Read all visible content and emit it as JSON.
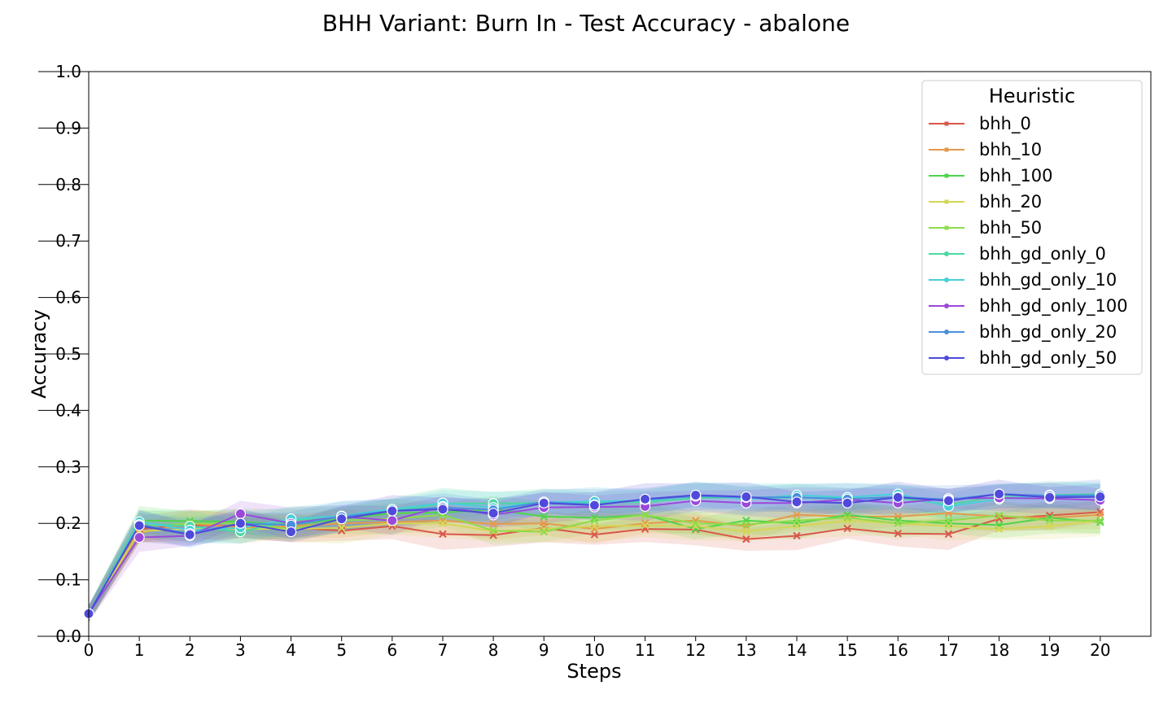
{
  "chart_data": {
    "type": "line",
    "title": "BHH Variant: Burn In - Test Accuracy - abalone",
    "xlabel": "Steps",
    "ylabel": "Accuracy",
    "xlim": [
      0,
      21
    ],
    "ylim": [
      0,
      1
    ],
    "x_ticks": [
      "0",
      "1",
      "2",
      "3",
      "4",
      "5",
      "6",
      "7",
      "8",
      "9",
      "10",
      "11",
      "12",
      "13",
      "14",
      "15",
      "16",
      "17",
      "18",
      "19",
      "20"
    ],
    "y_ticks": [
      "0.0",
      "0.1",
      "0.2",
      "0.3",
      "0.4",
      "0.5",
      "0.6",
      "0.7",
      "0.8",
      "0.9",
      "1.0"
    ],
    "legend": {
      "title": "Heuristic",
      "placement": "top-right"
    },
    "grid": false,
    "x": [
      0,
      1,
      2,
      3,
      4,
      5,
      6,
      7,
      8,
      9,
      10,
      11,
      12,
      13,
      14,
      15,
      16,
      17,
      18,
      19,
      20
    ],
    "series": [
      {
        "name": "bhh_0",
        "color": "#d9584a",
        "marker": "x",
        "values": [
          0.04,
          0.19,
          0.197,
          0.195,
          0.192,
          0.187,
          0.195,
          0.181,
          0.179,
          0.192,
          0.18,
          0.19,
          0.189,
          0.172,
          0.178,
          0.191,
          0.182,
          0.181,
          0.208,
          0.214,
          0.22
        ]
      },
      {
        "name": "bhh_10",
        "color": "#e59a4c",
        "marker": "x",
        "values": [
          0.04,
          0.183,
          0.2,
          0.192,
          0.195,
          0.2,
          0.202,
          0.205,
          0.199,
          0.2,
          0.19,
          0.2,
          0.205,
          0.195,
          0.215,
          0.212,
          0.212,
          0.218,
          0.212,
          0.21,
          0.215
        ]
      },
      {
        "name": "bhh_100",
        "color": "#4fd44c",
        "marker": "x",
        "values": [
          0.04,
          0.205,
          0.204,
          0.203,
          0.197,
          0.208,
          0.218,
          0.219,
          0.225,
          0.212,
          0.21,
          0.215,
          0.19,
          0.205,
          0.2,
          0.215,
          0.205,
          0.2,
          0.197,
          0.21,
          0.202
        ]
      },
      {
        "name": "bhh_20",
        "color": "#d5d655",
        "marker": "x",
        "values": [
          0.04,
          0.186,
          0.19,
          0.19,
          0.19,
          0.192,
          0.2,
          0.2,
          0.186,
          0.19,
          0.195,
          0.196,
          0.195,
          0.186,
          0.195,
          0.205,
          0.2,
          0.195,
          0.19,
          0.195,
          0.205
        ]
      },
      {
        "name": "bhh_50",
        "color": "#8fdc4a",
        "marker": "x",
        "values": [
          0.04,
          0.195,
          0.2,
          0.2,
          0.19,
          0.205,
          0.208,
          0.215,
          0.187,
          0.185,
          0.205,
          0.215,
          0.2,
          0.198,
          0.205,
          0.21,
          0.2,
          0.205,
          0.214,
          0.205,
          0.205
        ]
      },
      {
        "name": "bhh_gd_only_0",
        "color": "#4ad8a0",
        "marker": "o",
        "values": [
          0.04,
          0.2,
          0.195,
          0.185,
          0.205,
          0.213,
          0.222,
          0.235,
          0.235,
          0.236,
          0.237,
          0.238,
          0.245,
          0.246,
          0.245,
          0.244,
          0.245,
          0.233,
          0.248,
          0.25,
          0.252
        ]
      },
      {
        "name": "bhh_gd_only_10",
        "color": "#48cfd9",
        "marker": "o",
        "values": [
          0.04,
          0.203,
          0.188,
          0.192,
          0.208,
          0.213,
          0.225,
          0.236,
          0.228,
          0.237,
          0.239,
          0.24,
          0.25,
          0.243,
          0.25,
          0.246,
          0.252,
          0.23,
          0.243,
          0.25,
          0.248
        ]
      },
      {
        "name": "bhh_gd_only_100",
        "color": "#9b48db",
        "marker": "o",
        "values": [
          0.04,
          0.175,
          0.178,
          0.217,
          0.2,
          0.212,
          0.205,
          0.23,
          0.215,
          0.228,
          0.229,
          0.23,
          0.24,
          0.236,
          0.236,
          0.242,
          0.236,
          0.244,
          0.245,
          0.244,
          0.241
        ]
      },
      {
        "name": "bhh_gd_only_20",
        "color": "#4a8fdc",
        "marker": "o",
        "values": [
          0.04,
          0.198,
          0.182,
          0.2,
          0.197,
          0.212,
          0.222,
          0.228,
          0.224,
          0.238,
          0.233,
          0.242,
          0.248,
          0.246,
          0.246,
          0.243,
          0.247,
          0.242,
          0.252,
          0.249,
          0.25
        ]
      },
      {
        "name": "bhh_gd_only_50",
        "color": "#4f4adb",
        "marker": "o",
        "values": [
          0.04,
          0.196,
          0.18,
          0.2,
          0.185,
          0.208,
          0.222,
          0.225,
          0.218,
          0.236,
          0.232,
          0.243,
          0.25,
          0.247,
          0.238,
          0.236,
          0.246,
          0.24,
          0.252,
          0.246,
          0.247
        ]
      }
    ]
  }
}
